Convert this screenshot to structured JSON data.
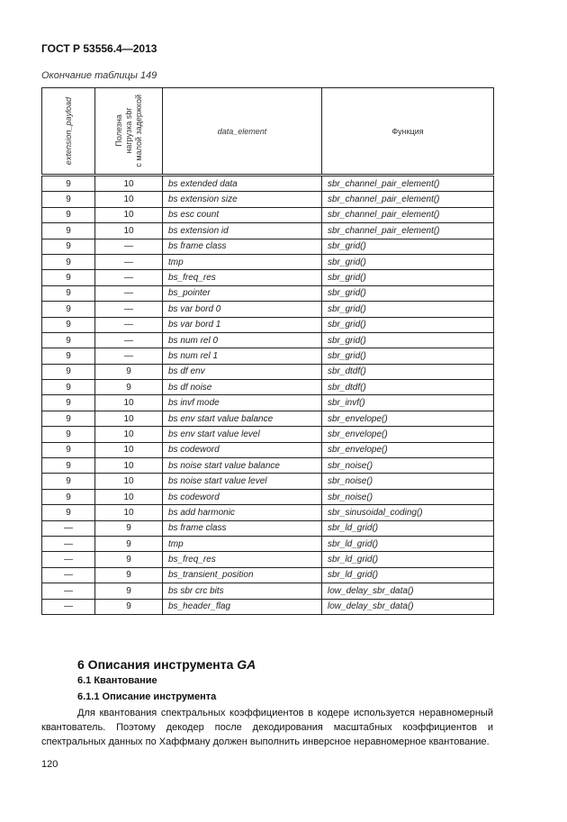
{
  "header": {
    "doc_title": "ГОСТ Р 53556.4—2013",
    "caption": "Окончание таблицы 149"
  },
  "table": {
    "columns": [
      "extension_payload",
      "Полезна нагрузка sbr с малой задержкой",
      "data_element",
      "Функция"
    ],
    "col2_lines": [
      "Полезна",
      "нагрузка sbr",
      "с малой задержкой"
    ],
    "rows": [
      [
        "9",
        "10",
        "bs extended data",
        "sbr_channel_pair_element()"
      ],
      [
        "9",
        "10",
        "bs extension size",
        "sbr_channel_pair_element()"
      ],
      [
        "9",
        "10",
        "bs esc count",
        "sbr_channel_pair_element()"
      ],
      [
        "9",
        "10",
        "bs extension id",
        "sbr_channel_pair_element()"
      ],
      [
        "9",
        "—",
        "bs frame class",
        "sbr_grid()"
      ],
      [
        "9",
        "—",
        "tmp",
        "sbr_grid()"
      ],
      [
        "9",
        "—",
        "bs_freq_res",
        "sbr_grid()"
      ],
      [
        "9",
        "—",
        "bs_pointer",
        "sbr_grid()"
      ],
      [
        "9",
        "—",
        "bs var bord 0",
        "sbr_grid()"
      ],
      [
        "9",
        "—",
        "bs var bord 1",
        "sbr_grid()"
      ],
      [
        "9",
        "—",
        "bs num rel 0",
        "sbr_grid()"
      ],
      [
        "9",
        "—",
        "bs num rel 1",
        "sbr_grid()"
      ],
      [
        "9",
        "9",
        "bs df env",
        "sbr_dtdf()"
      ],
      [
        "9",
        "9",
        "bs df noise",
        "sbr_dtdf()"
      ],
      [
        "9",
        "10",
        "bs invf mode",
        "sbr_invf()"
      ],
      [
        "9",
        "10",
        "bs env start value balance",
        "sbr_envelope()"
      ],
      [
        "9",
        "10",
        "bs env start value level",
        "sbr_envelope()"
      ],
      [
        "9",
        "10",
        "bs codeword",
        "sbr_envelope()"
      ],
      [
        "9",
        "10",
        "bs noise start value balance",
        "sbr_noise()"
      ],
      [
        "9",
        "10",
        "bs noise start value level",
        "sbr_noise()"
      ],
      [
        "9",
        "10",
        "bs codeword",
        "sbr_noise()"
      ],
      [
        "9",
        "10",
        "bs add harmonic",
        "sbr_sinusoidal_coding()"
      ],
      [
        "—",
        "9",
        "bs frame class",
        "sbr_ld_grid()"
      ],
      [
        "—",
        "9",
        "tmp",
        "sbr_ld_grid()"
      ],
      [
        "—",
        "9",
        "bs_freq_res",
        "sbr_ld_grid()"
      ],
      [
        "—",
        "9",
        "bs_transient_position",
        "sbr_ld_grid()"
      ],
      [
        "—",
        "9",
        "bs sbr crc bits",
        "low_delay_sbr_data()"
      ],
      [
        "—",
        "9",
        "bs_header_flag",
        "low_delay_sbr_data()"
      ]
    ]
  },
  "body": {
    "section_6": "6 Описания инструмента ",
    "section_6_italic": "GA",
    "section_6_1": "6.1 Квантование",
    "section_6_1_1": "6.1.1 Описание инструмента",
    "paragraph": "Для квантования спектральных коэффициентов в кодере используется неравномерный квантователь. Поэтому декодер после декодирования масштабных коэффициентов и спектральных данных по Хаффману должен выполнить инверсное неравномерное квантование."
  },
  "footer": {
    "page_number": "120"
  }
}
